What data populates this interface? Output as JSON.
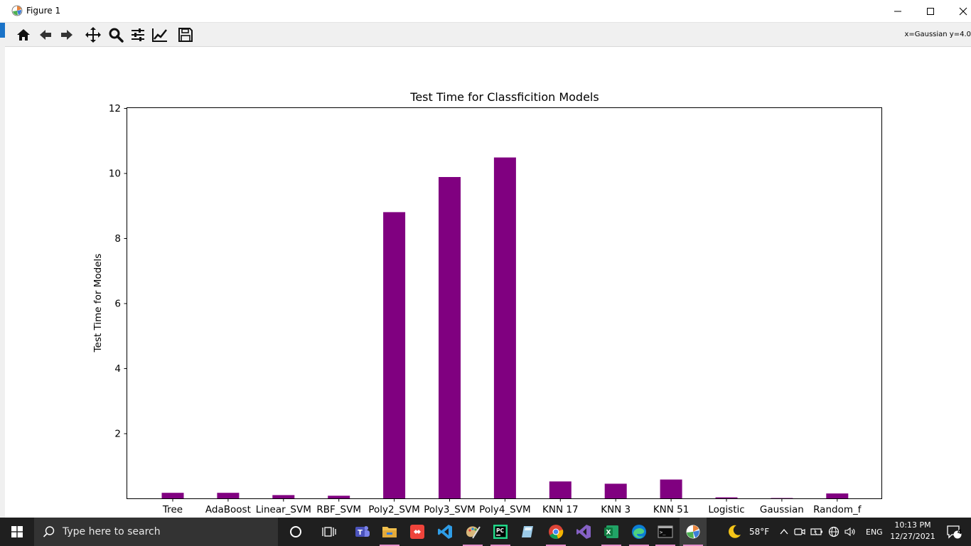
{
  "window": {
    "title": "Figure 1",
    "minimize": "—",
    "maximize": "☐",
    "close": "✕"
  },
  "toolbar": {
    "buttons": [
      {
        "name": "home-icon"
      },
      {
        "name": "back-arrow-icon"
      },
      {
        "name": "forward-arrow-icon"
      },
      {
        "name": "pan-icon"
      },
      {
        "name": "zoom-icon"
      },
      {
        "name": "subplots-config-icon"
      },
      {
        "name": "edit-axis-icon"
      },
      {
        "name": "save-icon"
      }
    ],
    "coord_readout": "x=Gaussian y=4.0"
  },
  "chart_data": {
    "type": "bar",
    "title": "Test Time for Classficition Models",
    "xlabel": "",
    "ylabel": "Test Time for Models",
    "categories": [
      "Tree",
      "AdaBoost",
      "Linear_SVM",
      "RBF_SVM",
      "Poly2_SVM",
      "Poly3_SVM",
      "Poly4_SVM",
      "KNN 17",
      "KNN 3",
      "KNN 51",
      "Logistic",
      "Gaussian",
      "Random_f"
    ],
    "values": [
      0.17,
      0.17,
      0.1,
      0.08,
      8.8,
      9.88,
      10.48,
      0.52,
      0.45,
      0.58,
      0.03,
      0.01,
      0.15
    ],
    "ylim": [
      0,
      12
    ],
    "yticks": [
      "2",
      "4",
      "6",
      "8",
      "10",
      "12"
    ],
    "ytick_values": [
      2,
      4,
      6,
      8,
      10,
      12
    ],
    "bar_color": "#800080",
    "grid": false
  },
  "taskbar": {
    "search_placeholder": "Type here to search",
    "apps": [
      {
        "name": "cortana-icon"
      },
      {
        "name": "task-view-icon"
      },
      {
        "name": "teams-icon"
      },
      {
        "name": "file-explorer-icon"
      },
      {
        "name": "anydesk-icon"
      },
      {
        "name": "vscode-icon"
      },
      {
        "name": "paint-icon"
      },
      {
        "name": "pycharm-icon"
      },
      {
        "name": "notepad-icon"
      },
      {
        "name": "chrome-icon"
      },
      {
        "name": "visual-studio-icon"
      },
      {
        "name": "excel-icon"
      },
      {
        "name": "edge-icon"
      },
      {
        "name": "terminal-icon"
      },
      {
        "name": "python-figure-icon"
      }
    ],
    "weather": "58°F",
    "language": "ENG",
    "time": "10:13 PM",
    "date": "12/27/2021",
    "notifications": "4"
  }
}
